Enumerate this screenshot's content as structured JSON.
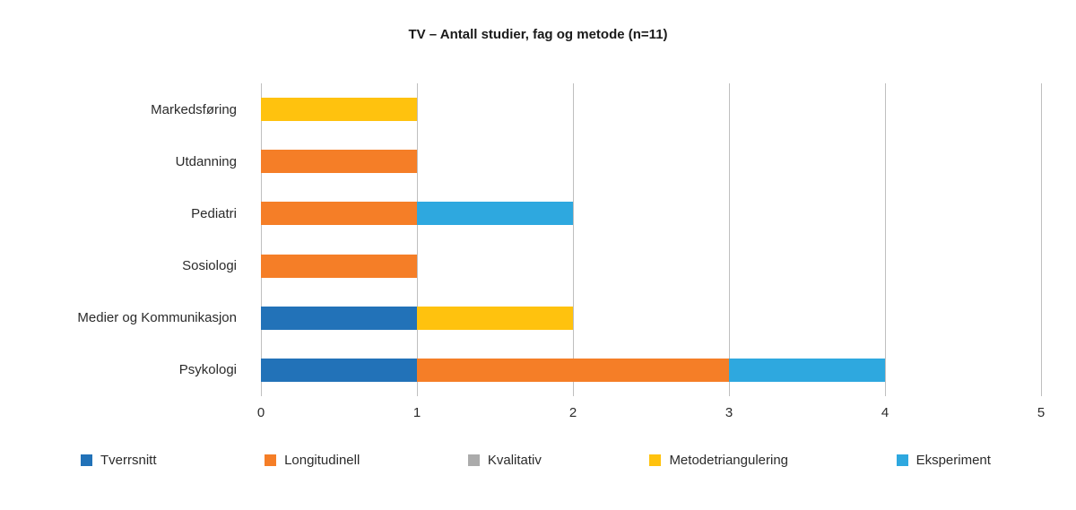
{
  "chart_data": {
    "type": "bar",
    "orientation": "horizontal",
    "stacked": true,
    "title": "TV – Antall studier, fag og metode (n=11)",
    "categories": [
      "Markedsføring",
      "Utdanning",
      "Pediatri",
      "Sosiologi",
      "Medier og Kommunikasjon",
      "Psykologi"
    ],
    "series": [
      {
        "name": "Tverrsnitt",
        "color": "#2272B8",
        "values": [
          0,
          0,
          0,
          0,
          1,
          1
        ]
      },
      {
        "name": "Longitudinell",
        "color": "#F57E27",
        "values": [
          0,
          1,
          1,
          1,
          0,
          2
        ]
      },
      {
        "name": "Kvalitativ",
        "color": "#ABABAB",
        "values": [
          0,
          0,
          0,
          0,
          0,
          0
        ]
      },
      {
        "name": "Metodetriangulering",
        "color": "#FFC20E",
        "values": [
          1,
          0,
          0,
          0,
          1,
          0
        ]
      },
      {
        "name": "Eksperiment",
        "color": "#2EA8DF",
        "values": [
          0,
          0,
          1,
          0,
          0,
          1
        ]
      }
    ],
    "xlim": [
      0,
      5
    ],
    "xticks": [
      0,
      1,
      2,
      3,
      4,
      5
    ],
    "grid": "vertical",
    "legend_position": "bottom"
  }
}
